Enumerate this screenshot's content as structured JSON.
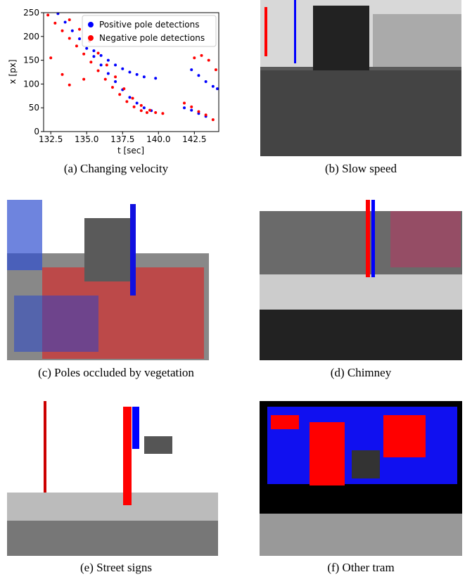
{
  "chart_data": {
    "type": "scatter",
    "xlabel": "t [sec]",
    "ylabel": "x [px]",
    "xlim": [
      132,
      144.2
    ],
    "ylim": [
      0,
      250
    ],
    "xticks": [
      132.5,
      {
        "value": 135,
        "label": "135.0"
      },
      137.5,
      {
        "value": 140,
        "label": "140.0"
      },
      142.5
    ],
    "yticks": [
      0,
      50,
      100,
      150,
      200,
      250
    ],
    "legend": "upper right",
    "series": [
      {
        "name": "Positive pole detections",
        "color": "#0000ff",
        "x": [
          133.0,
          133.5,
          134.0,
          134.5,
          135.0,
          135.5,
          136.0,
          136.5,
          137.0,
          137.5,
          138.0,
          138.5,
          139.0,
          139.5,
          135.5,
          136.0,
          136.5,
          137.0,
          137.5,
          138.0,
          138.5,
          139.0,
          139.8,
          142.3,
          142.8,
          143.3,
          143.8,
          144.1,
          141.8,
          142.3,
          142.8,
          143.3
        ],
        "y": [
          248,
          230,
          212,
          195,
          175,
          158,
          140,
          122,
          105,
          88,
          72,
          60,
          50,
          44,
          170,
          160,
          150,
          140,
          132,
          125,
          120,
          115,
          112,
          130,
          118,
          105,
          95,
          90,
          50,
          45,
          38,
          32
        ]
      },
      {
        "name": "Negative pole detections",
        "color": "#ff0000",
        "x": [
          132.3,
          132.8,
          133.3,
          133.8,
          134.3,
          134.8,
          135.3,
          135.8,
          136.3,
          136.8,
          137.3,
          137.8,
          138.3,
          138.8,
          139.2,
          133.8,
          134.5,
          135.2,
          135.8,
          136.4,
          137.0,
          137.6,
          138.2,
          138.8,
          139.4,
          141.8,
          142.3,
          142.8,
          143.3,
          143.8,
          142.5,
          143.0,
          143.5,
          144.0,
          132.5,
          133.3,
          133.8,
          134.8,
          139.8,
          140.3
        ],
        "y": [
          245,
          228,
          212,
          196,
          180,
          163,
          146,
          128,
          110,
          93,
          78,
          63,
          52,
          44,
          40,
          235,
          215,
          190,
          165,
          140,
          115,
          90,
          70,
          55,
          45,
          60,
          52,
          42,
          35,
          25,
          155,
          160,
          150,
          130,
          155,
          120,
          98,
          110,
          40,
          38
        ]
      }
    ]
  },
  "captions": [
    "(a) Changing velocity",
    "(b) Slow speed",
    "(c) Poles occluded by vegetation",
    "(d) Chimney",
    "(e) Street signs",
    "(f) Other tram"
  ]
}
